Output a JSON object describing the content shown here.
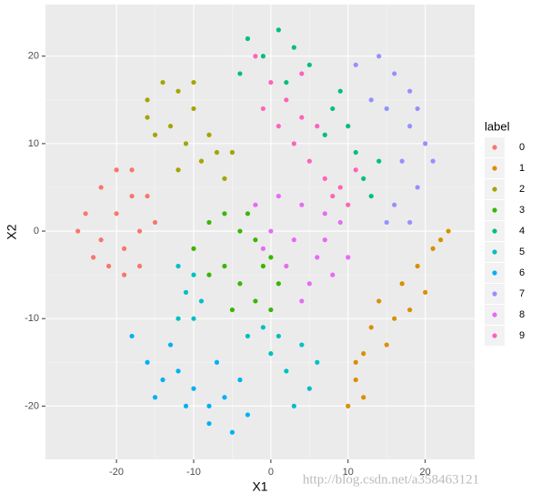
{
  "chart_data": {
    "type": "scatter",
    "x_label": "X1",
    "y_label": "X2",
    "legend_title": "label",
    "legend_position": "right",
    "watermark": "http://blog.csdn.net/a358463121",
    "grid": true,
    "xlim": [
      -29.2,
      26.4
    ],
    "ylim": [
      -26.1,
      25.9
    ],
    "xticks": [
      -20,
      -10,
      0,
      10,
      20
    ],
    "yticks": [
      -20,
      -10,
      0,
      10,
      20
    ],
    "series": [
      {
        "name": "0",
        "color": "#F8766D",
        "x": [
          -24,
          -22,
          -20,
          -18,
          -17,
          -19,
          -22,
          -25,
          -21,
          -17,
          -15,
          -16,
          -20,
          -23,
          -19,
          -18
        ],
        "values": [
          2,
          5,
          7,
          4,
          0,
          -2,
          -1,
          0,
          -4,
          -4,
          1,
          4,
          2,
          -3,
          -5,
          7
        ]
      },
      {
        "name": "1",
        "color": "#D89000",
        "x": [
          10,
          11,
          12,
          13,
          14,
          16,
          17,
          19,
          20,
          21,
          22,
          23,
          15,
          12,
          18,
          11
        ],
        "values": [
          -20,
          -17,
          -14,
          -11,
          -8,
          -10,
          -6,
          -4,
          -7,
          -2,
          -1,
          0,
          -13,
          -19,
          -9,
          -15
        ]
      },
      {
        "name": "2",
        "color": "#A3A500",
        "x": [
          -16,
          -14,
          -12,
          -10,
          -15,
          -13,
          -11,
          -9,
          -7,
          -6,
          -8,
          -5,
          -12,
          -16,
          -10
        ],
        "values": [
          15,
          17,
          16,
          14,
          11,
          12,
          10,
          8,
          9,
          6,
          11,
          9,
          7,
          13,
          17
        ]
      },
      {
        "name": "3",
        "color": "#39B600",
        "x": [
          -10,
          -8,
          -6,
          -4,
          -2,
          0,
          1,
          -2,
          -4,
          -6,
          -8,
          -3,
          -5,
          -1,
          0
        ],
        "values": [
          -2,
          1,
          2,
          0,
          -1,
          -3,
          -6,
          -8,
          -6,
          -4,
          -5,
          2,
          -9,
          -4,
          -9
        ]
      },
      {
        "name": "4",
        "color": "#00BF7D",
        "x": [
          -3,
          -1,
          1,
          3,
          5,
          2,
          8,
          10,
          11,
          9,
          12,
          13,
          14,
          7,
          -4
        ],
        "values": [
          22,
          20,
          23,
          21,
          19,
          17,
          14,
          12,
          9,
          16,
          6,
          4,
          8,
          11,
          18
        ]
      },
      {
        "name": "5",
        "color": "#00BFC4",
        "x": [
          -12,
          -11,
          -10,
          -9,
          -12,
          -3,
          0,
          2,
          4,
          5,
          6,
          -1,
          3,
          1,
          -10
        ],
        "values": [
          -4,
          -7,
          -10,
          -8,
          -10,
          -12,
          -14,
          -16,
          -13,
          -18,
          -15,
          -11,
          -20,
          -12,
          -5
        ]
      },
      {
        "name": "6",
        "color": "#00B0F6",
        "x": [
          -18,
          -16,
          -14,
          -12,
          -10,
          -8,
          -6,
          -4,
          -3,
          -5,
          -8,
          -11,
          -13,
          -15,
          -7
        ],
        "values": [
          -12,
          -15,
          -17,
          -16,
          -18,
          -20,
          -19,
          -17,
          -21,
          -23,
          -22,
          -20,
          -13,
          -19,
          -15
        ]
      },
      {
        "name": "7",
        "color": "#9590FF",
        "x": [
          11,
          14,
          16,
          18,
          15,
          18,
          20,
          17,
          19,
          16,
          15,
          18,
          21,
          13,
          19
        ],
        "values": [
          19,
          20,
          18,
          16,
          14,
          12,
          10,
          8,
          5,
          3,
          1,
          1,
          8,
          15,
          14
        ]
      },
      {
        "name": "8",
        "color": "#E76BF3",
        "x": [
          -2,
          1,
          4,
          7,
          9,
          3,
          6,
          8,
          5,
          2,
          10,
          0,
          7,
          4,
          -1
        ],
        "values": [
          3,
          4,
          3,
          2,
          1,
          -1,
          -3,
          -5,
          -6,
          -4,
          -3,
          0,
          -1,
          -8,
          -2
        ]
      },
      {
        "name": "9",
        "color": "#FF62BC",
        "x": [
          -2,
          0,
          2,
          4,
          1,
          3,
          5,
          7,
          8,
          10,
          11,
          6,
          -1,
          9,
          4
        ],
        "values": [
          20,
          17,
          15,
          13,
          12,
          10,
          8,
          6,
          4,
          3,
          7,
          12,
          14,
          5,
          18
        ]
      }
    ]
  }
}
